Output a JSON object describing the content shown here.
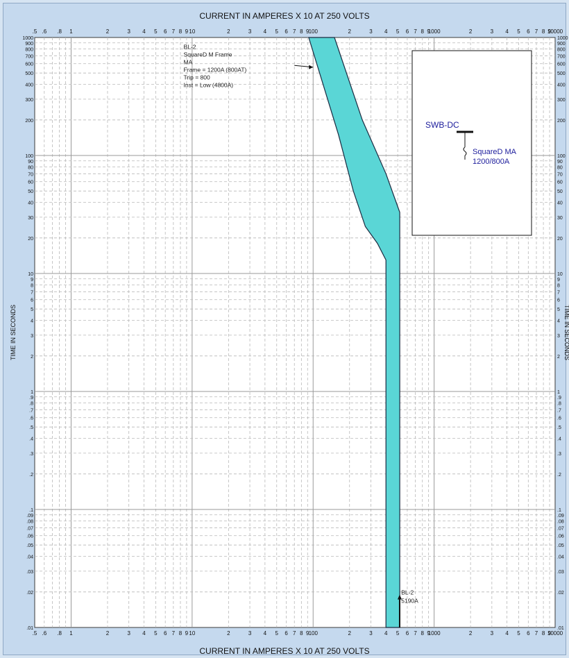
{
  "chart_data": {
    "type": "line",
    "title": "CURRENT IN AMPERES X 10 AT 250 VOLTS",
    "xlabel_top": "CURRENT IN AMPERES X 10 AT 250 VOLTS",
    "xlabel_bottom": "CURRENT IN AMPERES X 10 AT 250 VOLTS",
    "ylabel_left": "TIME IN SECONDS",
    "ylabel_right": "TIME IN SECONDS",
    "x_scale": "log",
    "y_scale": "log",
    "xlim": [
      0.5,
      10000
    ],
    "ylim": [
      0.01,
      1000
    ],
    "grid": true,
    "x_tick_labels": [
      {
        "v": 0.5,
        "t": ".5"
      },
      {
        "v": 0.6,
        "t": ".6"
      },
      {
        "v": 0.8,
        "t": ".8"
      },
      {
        "v": 1,
        "t": "1"
      },
      {
        "v": 2,
        "t": "2"
      },
      {
        "v": 3,
        "t": "3"
      },
      {
        "v": 4,
        "t": "4"
      },
      {
        "v": 5,
        "t": "5"
      },
      {
        "v": 6,
        "t": "6"
      },
      {
        "v": 7,
        "t": "7"
      },
      {
        "v": 8,
        "t": "8"
      },
      {
        "v": 9,
        "t": "9"
      },
      {
        "v": 10,
        "t": "10"
      },
      {
        "v": 20,
        "t": "2"
      },
      {
        "v": 30,
        "t": "3"
      },
      {
        "v": 40,
        "t": "4"
      },
      {
        "v": 50,
        "t": "5"
      },
      {
        "v": 60,
        "t": "6"
      },
      {
        "v": 70,
        "t": "7"
      },
      {
        "v": 80,
        "t": "8"
      },
      {
        "v": 90,
        "t": "9"
      },
      {
        "v": 100,
        "t": "100"
      },
      {
        "v": 200,
        "t": "2"
      },
      {
        "v": 300,
        "t": "3"
      },
      {
        "v": 400,
        "t": "4"
      },
      {
        "v": 500,
        "t": "5"
      },
      {
        "v": 600,
        "t": "6"
      },
      {
        "v": 700,
        "t": "7"
      },
      {
        "v": 800,
        "t": "8"
      },
      {
        "v": 900,
        "t": "9"
      },
      {
        "v": 1000,
        "t": "1000"
      },
      {
        "v": 2000,
        "t": "2"
      },
      {
        "v": 3000,
        "t": "3"
      },
      {
        "v": 4000,
        "t": "4"
      },
      {
        "v": 5000,
        "t": "5"
      },
      {
        "v": 6000,
        "t": "6"
      },
      {
        "v": 7000,
        "t": "7"
      },
      {
        "v": 8000,
        "t": "8"
      },
      {
        "v": 9000,
        "t": "9"
      },
      {
        "v": 10000,
        "t": "10000"
      }
    ],
    "y_tick_labels": [
      {
        "v": 1000,
        "t": "1000"
      },
      {
        "v": 900,
        "t": "900"
      },
      {
        "v": 800,
        "t": "800"
      },
      {
        "v": 700,
        "t": "700"
      },
      {
        "v": 600,
        "t": "600"
      },
      {
        "v": 500,
        "t": "500"
      },
      {
        "v": 400,
        "t": "400"
      },
      {
        "v": 300,
        "t": "300"
      },
      {
        "v": 200,
        "t": "200"
      },
      {
        "v": 100,
        "t": "100"
      },
      {
        "v": 90,
        "t": "90"
      },
      {
        "v": 80,
        "t": "80"
      },
      {
        "v": 70,
        "t": "70"
      },
      {
        "v": 60,
        "t": "60"
      },
      {
        "v": 50,
        "t": "50"
      },
      {
        "v": 40,
        "t": "40"
      },
      {
        "v": 30,
        "t": "30"
      },
      {
        "v": 20,
        "t": "20"
      },
      {
        "v": 10,
        "t": "10"
      },
      {
        "v": 9,
        "t": "9"
      },
      {
        "v": 8,
        "t": "8"
      },
      {
        "v": 7,
        "t": "7"
      },
      {
        "v": 6,
        "t": "6"
      },
      {
        "v": 5,
        "t": "5"
      },
      {
        "v": 4,
        "t": "4"
      },
      {
        "v": 3,
        "t": "3"
      },
      {
        "v": 2,
        "t": "2"
      },
      {
        "v": 1,
        "t": "1"
      },
      {
        "v": 0.9,
        "t": ".9"
      },
      {
        "v": 0.8,
        "t": ".8"
      },
      {
        "v": 0.7,
        "t": ".7"
      },
      {
        "v": 0.6,
        "t": ".6"
      },
      {
        "v": 0.5,
        "t": ".5"
      },
      {
        "v": 0.4,
        "t": ".4"
      },
      {
        "v": 0.3,
        "t": ".3"
      },
      {
        "v": 0.2,
        "t": ".2"
      },
      {
        "v": 0.1,
        "t": ".1"
      },
      {
        "v": 0.09,
        "t": ".09"
      },
      {
        "v": 0.08,
        "t": ".08"
      },
      {
        "v": 0.07,
        "t": ".07"
      },
      {
        "v": 0.06,
        "t": ".06"
      },
      {
        "v": 0.05,
        "t": ".05"
      },
      {
        "v": 0.04,
        "t": ".04"
      },
      {
        "v": 0.03,
        "t": ".03"
      },
      {
        "v": 0.02,
        "t": ".02"
      },
      {
        "v": 0.01,
        "t": ".01"
      }
    ],
    "series": [
      {
        "name": "BL-2",
        "color": "#5ad6d6",
        "outline": "#1a2a40",
        "band_polygon": [
          {
            "x": 92,
            "y": 1000
          },
          {
            "x": 150,
            "y": 1000
          },
          {
            "x": 255,
            "y": 200
          },
          {
            "x": 400,
            "y": 70
          },
          {
            "x": 520,
            "y": 33
          },
          {
            "x": 520,
            "y": 0.01
          },
          {
            "x": 400,
            "y": 0.01
          },
          {
            "x": 400,
            "y": 13
          },
          {
            "x": 340,
            "y": 18
          },
          {
            "x": 270,
            "y": 25
          },
          {
            "x": 215,
            "y": 50
          },
          {
            "x": 162,
            "y": 150
          }
        ]
      }
    ],
    "annotations": {
      "device_label": [
        "BL-2",
        "SquareD M Frame",
        "MA",
        "Frame = 1200A (800AT)",
        "Trip = 800",
        "Inst = Low (4800A)"
      ],
      "device_label_pos": {
        "x": 8.5,
        "y": 800
      },
      "pointer_arrow": {
        "from": {
          "x": 70,
          "y": 580
        },
        "to": {
          "x": 100,
          "y": 560
        }
      },
      "fault_marker_lines": [
        "BL-2",
        "5190A"
      ],
      "fault_current": 519,
      "fault_label_pos": {
        "x": 535,
        "y": 0.019
      }
    },
    "inset": {
      "bus_label": "SWB-DC",
      "device_lines": [
        "SquareD  MA",
        "1200/800A"
      ]
    }
  }
}
